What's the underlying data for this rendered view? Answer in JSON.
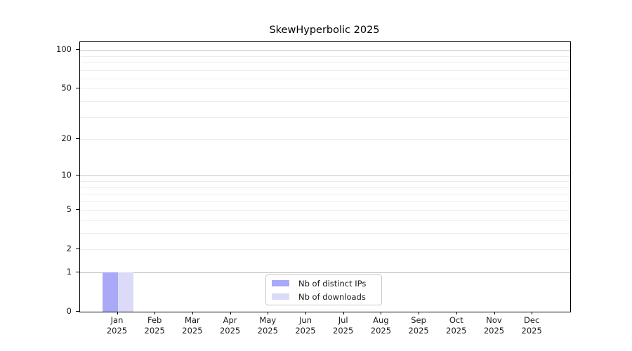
{
  "page": {
    "background": "#ffffff"
  },
  "chart_data": {
    "type": "bar",
    "title": "SkewHyperbolic 2025",
    "months": [
      "Jan",
      "Feb",
      "Mar",
      "Apr",
      "May",
      "Jun",
      "Jul",
      "Aug",
      "Sep",
      "Oct",
      "Nov",
      "Dec"
    ],
    "year_label": "2025",
    "series": [
      {
        "name": "Nb of distinct IPs",
        "color": "#a9a9f7",
        "values": [
          1,
          0,
          0,
          0,
          0,
          0,
          0,
          0,
          0,
          0,
          0,
          0
        ]
      },
      {
        "name": "Nb of downloads",
        "color": "#dbdbf9",
        "values": [
          1,
          0,
          0,
          0,
          0,
          0,
          0,
          0,
          0,
          0,
          0,
          0
        ]
      }
    ],
    "yscale": "log1p",
    "ylim": [
      0,
      115
    ],
    "y_tick_labels": [
      100,
      50,
      20,
      10,
      5,
      2,
      1,
      0
    ],
    "y_major_gridlines": [
      1,
      10,
      100
    ],
    "y_minor_gridlines": [
      2,
      3,
      4,
      5,
      6,
      7,
      8,
      9,
      20,
      30,
      40,
      50,
      60,
      70,
      80,
      90
    ],
    "legend": {
      "position": "lower center"
    },
    "grid": true,
    "colors": {
      "axis": "#000000",
      "major_grid": "#c2c2c2",
      "minor_grid": "#ececec",
      "text": "#1a1a1a"
    }
  }
}
